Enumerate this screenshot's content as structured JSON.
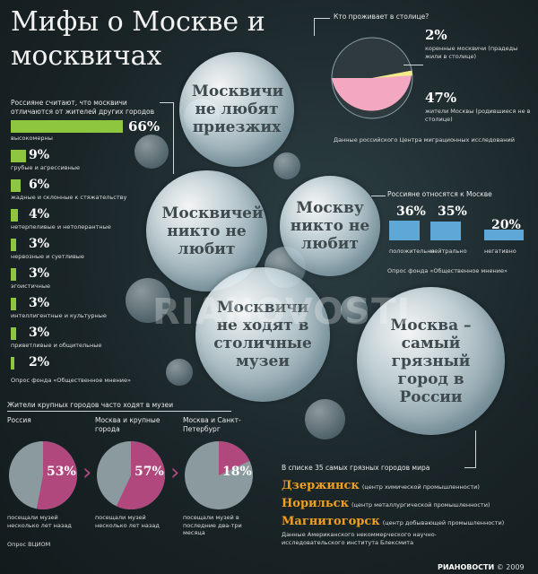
{
  "title": "Мифы о Москве и москвичах",
  "residents": {
    "question": "Кто проживает в столице?",
    "natives_pct": "2%",
    "natives_label": "коренные москвичи (прадеды жили в столице)",
    "citizens_pct": "47%",
    "citizens_label": "жители Москвы (родившиеся не в столице)",
    "source": "Данные российского Центра миграционных исследований"
  },
  "myths": {
    "m1": "Москвичи не любят приезжих",
    "m2": "Москвичей никто не любит",
    "m3": "Москву никто не любит",
    "m4": "Москвичи не ходят в столичные музеи",
    "m5": "Москва – самый грязный город в России"
  },
  "traits": {
    "intro": "Россияне считают, что москвичи отличаются от жителей других городов",
    "items": [
      {
        "pct": "66%",
        "label": "высокомерны"
      },
      {
        "pct": "9%",
        "label": "грубые и агрессивные"
      },
      {
        "pct": "6%",
        "label": "жадные и склонные к стяжательству"
      },
      {
        "pct": "4%",
        "label": "нетерпеливые и нетолерантные"
      },
      {
        "pct": "3%",
        "label": "нервозные и суетливые"
      },
      {
        "pct": "3%",
        "label": "эгоистичные"
      },
      {
        "pct": "3%",
        "label": "интеллигентные и культурные"
      },
      {
        "pct": "3%",
        "label": "приветливые и общительные"
      },
      {
        "pct": "2%",
        "label": ""
      }
    ],
    "source": "Опрос фонда «Общественное мнение»"
  },
  "attitude": {
    "intro": "Россияне относятся к Москве",
    "items": [
      {
        "pct": "36%",
        "label": "положительно"
      },
      {
        "pct": "35%",
        "label": "нейтрально"
      },
      {
        "pct": "20%",
        "label": "негативно"
      }
    ],
    "source": "Опрос фонда «Общественное мнение»"
  },
  "museums": {
    "intro": "Жители крупных городов часто ходят в музеи",
    "items": [
      {
        "region": "Россия",
        "pct": "53%",
        "caption": "посещали музей несколько лет назад"
      },
      {
        "region": "Москва и крупные города",
        "pct": "57%",
        "caption": "посещали музей несколько лет назад"
      },
      {
        "region": "Москва и Санкт-Петербург",
        "pct": "18%",
        "caption": "посещали музей в последние два-три месяца"
      }
    ],
    "source": "Опрос ВЦИОМ"
  },
  "dirty": {
    "intro": "В списке 35 самых грязных городов мира",
    "cities": [
      {
        "name": "Дзержинск",
        "note": "(центр химической промышленности)"
      },
      {
        "name": "Норильск",
        "note": "(центр металлургической промышленности)"
      },
      {
        "name": "Магнитогорск",
        "note": "(центр добывающей промышленности)"
      }
    ],
    "source": "Данные Американского некоммерческого научно-исследовательского института Блексмита"
  },
  "watermark": "RIANOVOSTI",
  "footer": {
    "brand": "РИАНОВОСТИ",
    "year": "© 2009"
  },
  "colors": {
    "green": "#8ec63f",
    "blue": "#5ea8d8",
    "pink": "#f4a7c0",
    "magenta": "#b0487e",
    "gray": "#8a9a9e",
    "orange": "#f0a020"
  },
  "chart_data": [
    {
      "type": "pie",
      "title": "Кто проживает в столице?",
      "slices": [
        {
          "label": "коренные москвичи (прадеды жили в столице)",
          "value": 2
        },
        {
          "label": "жители Москвы (родившиеся не в столице)",
          "value": 47
        }
      ]
    },
    {
      "type": "bar",
      "title": "Россияне считают, что москвичи отличаются от жителей других городов",
      "categories": [
        "высокомерны",
        "грубые и агрессивные",
        "жадные и склонные к стяжательству",
        "нетерпеливые и нетолерантные",
        "нервозные и суетливые",
        "эгоистичные",
        "интеллигентные и культурные",
        "приветливые и общительные",
        ""
      ],
      "values": [
        66,
        9,
        6,
        4,
        3,
        3,
        3,
        3,
        2
      ]
    },
    {
      "type": "bar",
      "title": "Россияне относятся к Москве",
      "categories": [
        "положительно",
        "нейтрально",
        "негативно"
      ],
      "values": [
        36,
        35,
        20
      ]
    },
    {
      "type": "pie",
      "title": "Жители крупных городов часто ходят в музеи",
      "categories": [
        "Россия",
        "Москва и крупные города",
        "Москва и Санкт-Петербург"
      ],
      "values": [
        53,
        57,
        18
      ]
    }
  ]
}
